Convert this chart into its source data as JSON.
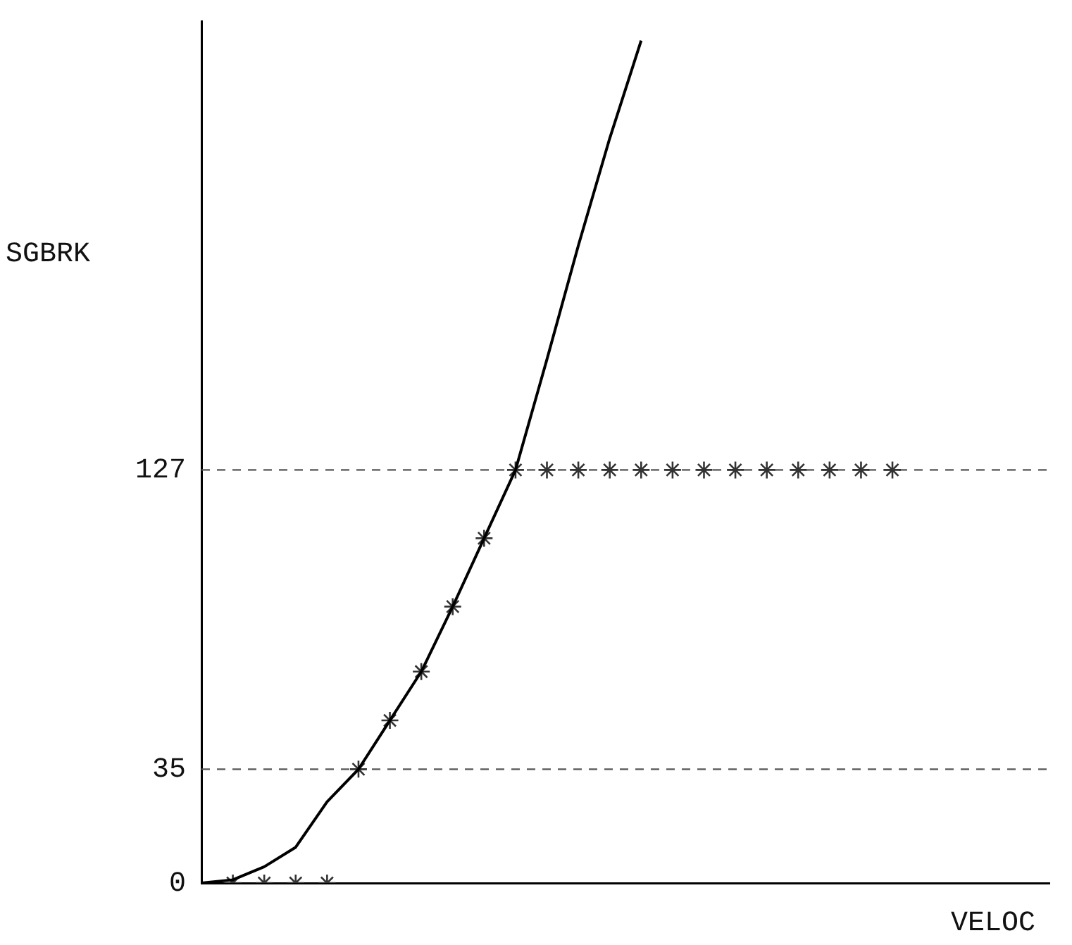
{
  "chart_data": {
    "type": "line",
    "xlabel": "VELOC",
    "ylabel": "SGBRK",
    "categories": [
      null,
      null,
      null,
      null,
      null,
      null,
      null,
      null,
      null,
      null,
      null,
      null,
      null,
      null,
      null,
      null,
      null,
      null,
      null,
      null,
      null,
      null,
      null,
      null,
      null,
      null,
      null,
      null
    ],
    "ylim": [
      0,
      265
    ],
    "yticks": [
      0,
      35,
      127
    ],
    "grid": false,
    "legend": false,
    "series": [
      {
        "type": "line",
        "color": "#000000",
        "marker": "none",
        "line_style": "solid",
        "values": [
          0,
          1,
          5,
          11,
          25,
          35,
          50,
          65,
          85,
          106,
          127,
          161,
          196,
          229,
          259,
          null,
          null,
          null,
          null,
          null,
          null,
          null,
          null,
          null,
          null,
          null,
          null,
          null
        ]
      },
      {
        "type": "scatter",
        "color": "#333333",
        "marker": "cross",
        "values": [
          null,
          0,
          0,
          0,
          0,
          35,
          50,
          65,
          85,
          106,
          127,
          127,
          127,
          127,
          127,
          127,
          127,
          127,
          127,
          127,
          127,
          127,
          127,
          null,
          null,
          null,
          null,
          null
        ]
      }
    ],
    "ref_lines": [
      {
        "axis": "y",
        "value": 35,
        "line_style": "dashed",
        "color": "#555555"
      },
      {
        "axis": "y",
        "value": 127,
        "line_style": "dashed",
        "color": "#555555"
      }
    ]
  }
}
